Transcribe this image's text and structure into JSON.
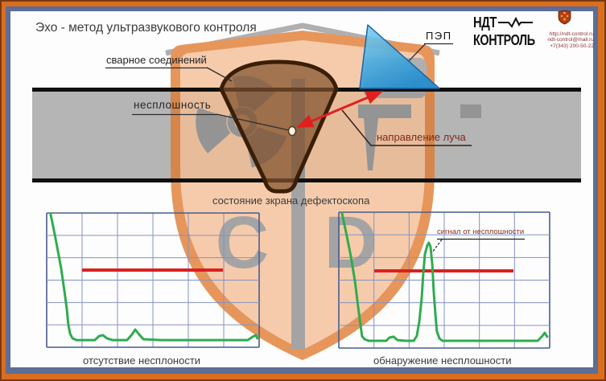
{
  "title": "Эхо - метод ультразвукового контроля",
  "logo": {
    "name_line1": "НДТ",
    "name_line2": "КОНТРОЛЬ",
    "contacts": [
      "http://ndt-control.ru",
      "ndt-control@mail.ru",
      "+7(343) 200-50-22"
    ]
  },
  "diagram": {
    "weld_label": "сварное соединений",
    "flaw_label": "несплошность",
    "probe_label": "ПЭП",
    "beam_label": "направление луча"
  },
  "screens_caption": "состояние зкрана дефектоскопа",
  "watermark_letters": [
    "С",
    "D"
  ],
  "colors": {
    "frame_outer": "#D96E1F",
    "frame_inner": "#5D6D96",
    "plate_gray": "#B5B5B5",
    "weld_brown": "#7E5229",
    "probe_blue": "#2FA7E8",
    "beam_red": "#E02020",
    "trace_green": "#2FAC4E",
    "threshold_red": "#DB2020",
    "grid_blue": "#8292C4",
    "grid_frame": "#4A5C8E",
    "shield_orange": "#E07A2E",
    "accent_text_red": "#8B3535"
  },
  "chart_data": [
    {
      "type": "line",
      "title": "состояние зкрана дефектоскопа",
      "name": "отсутствие несплоности",
      "xlabel": "",
      "ylabel": "",
      "x_range": [
        0,
        6
      ],
      "y_range": [
        0,
        6
      ],
      "grid": true,
      "threshold": {
        "y": 3.45,
        "x_from": 1.0,
        "x_to": 4.98
      },
      "trace_x": [
        0.11,
        0.23,
        0.34,
        0.41,
        0.5,
        0.57,
        0.61,
        0.66,
        0.73,
        0.84,
        1.36,
        1.48,
        1.59,
        1.7,
        1.86,
        2.27,
        2.41,
        2.5,
        2.59,
        2.73,
        3.23,
        5.68,
        5.82,
        5.91,
        5.95
      ],
      "trace_y": [
        5.97,
        5.03,
        4.1,
        3.52,
        2.52,
        1.69,
        1.04,
        0.61,
        0.4,
        0.32,
        0.32,
        0.5,
        0.54,
        0.4,
        0.32,
        0.32,
        0.57,
        0.79,
        0.61,
        0.36,
        0.32,
        0.32,
        0.47,
        0.54,
        0.4
      ]
    },
    {
      "type": "line",
      "name": "обнаружение несплошности",
      "annotation": "сигнал от несплошности",
      "xlabel": "",
      "ylabel": "",
      "x_range": [
        0,
        6
      ],
      "y_range": [
        0,
        6
      ],
      "grid": true,
      "threshold": {
        "y": 3.41,
        "x_from": 1.01,
        "x_to": 4.97
      },
      "trace_x": [
        0.09,
        0.21,
        0.34,
        0.46,
        0.55,
        0.62,
        0.66,
        0.73,
        0.85,
        1.35,
        1.44,
        1.56,
        1.67,
        1.9,
        2.13,
        2.22,
        2.29,
        2.36,
        2.4,
        2.45,
        2.52,
        2.56,
        2.61,
        2.66,
        2.7,
        2.75,
        2.79,
        2.86,
        2.95,
        3.23,
        5.66,
        5.79,
        5.86,
        5.93
      ],
      "trace_y": [
        5.96,
        5.08,
        4.08,
        2.95,
        1.81,
        0.99,
        0.53,
        0.39,
        0.32,
        0.32,
        0.46,
        0.5,
        0.35,
        0.32,
        0.32,
        0.53,
        1.17,
        2.24,
        3.23,
        4.15,
        4.54,
        4.65,
        4.47,
        3.66,
        2.52,
        1.46,
        0.75,
        0.43,
        0.32,
        0.32,
        0.32,
        0.53,
        0.67,
        0.5
      ]
    }
  ]
}
